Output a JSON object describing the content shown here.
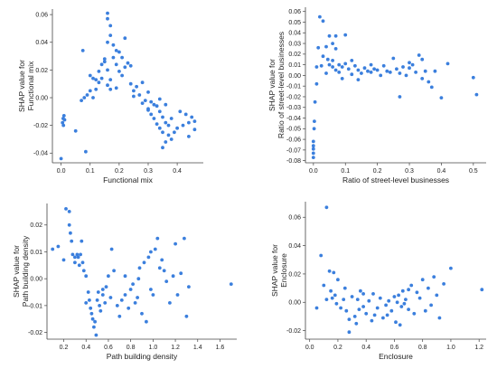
{
  "colors": {
    "point": "#3b7fdd",
    "axis": "#444444",
    "text": "#222222"
  },
  "chart_data": [
    {
      "type": "scatter",
      "xlabel": "Functional mix",
      "ylabel": [
        "SHAP value for",
        "Functional mix"
      ],
      "xlim": [
        -0.03,
        0.49
      ],
      "ylim": [
        -0.047,
        0.064
      ],
      "xticks": [
        0.0,
        0.1,
        0.2,
        0.3,
        0.4
      ],
      "xtick_labels": [
        "0.0",
        "0.1",
        "0.2",
        "0.3",
        "0.4"
      ],
      "yticks": [
        -0.04,
        -0.02,
        0.0,
        0.02,
        0.04,
        0.06
      ],
      "ytick_labels": [
        "-0.04",
        "-0.02",
        "0.00",
        "0.02",
        "0.04",
        "0.06"
      ],
      "points": [
        [
          0.0,
          -0.044
        ],
        [
          0.005,
          -0.018
        ],
        [
          0.007,
          -0.015
        ],
        [
          0.01,
          -0.013
        ],
        [
          0.012,
          -0.016
        ],
        [
          0.008,
          -0.02
        ],
        [
          0.05,
          -0.024
        ],
        [
          0.07,
          -0.002
        ],
        [
          0.08,
          0.0
        ],
        [
          0.09,
          0.002
        ],
        [
          0.085,
          -0.039
        ],
        [
          0.075,
          0.034
        ],
        [
          0.1,
          0.016
        ],
        [
          0.11,
          0.014
        ],
        [
          0.1,
          0.005
        ],
        [
          0.12,
          0.013
        ],
        [
          0.13,
          0.011
        ],
        [
          0.11,
          0.0
        ],
        [
          0.14,
          0.024
        ],
        [
          0.15,
          0.026
        ],
        [
          0.16,
          0.02
        ],
        [
          0.14,
          0.014
        ],
        [
          0.15,
          0.028
        ],
        [
          0.17,
          0.013
        ],
        [
          0.16,
          0.061
        ],
        [
          0.16,
          0.057
        ],
        [
          0.17,
          0.052
        ],
        [
          0.17,
          0.045
        ],
        [
          0.16,
          0.04
        ],
        [
          0.18,
          0.038
        ],
        [
          0.19,
          0.034
        ],
        [
          0.2,
          0.033
        ],
        [
          0.21,
          0.029
        ],
        [
          0.22,
          0.043
        ],
        [
          0.18,
          0.029
        ],
        [
          0.19,
          0.024
        ],
        [
          0.2,
          0.019
        ],
        [
          0.22,
          0.022
        ],
        [
          0.23,
          0.025
        ],
        [
          0.24,
          0.023
        ],
        [
          0.21,
          0.016
        ],
        [
          0.17,
          0.006
        ],
        [
          0.16,
          0.009
        ],
        [
          0.19,
          0.007
        ],
        [
          0.25,
          0.005
        ],
        [
          0.26,
          0.008
        ],
        [
          0.28,
          0.011
        ],
        [
          0.3,
          0.004
        ],
        [
          0.27,
          0.002
        ],
        [
          0.29,
          -0.002
        ],
        [
          0.31,
          -0.003
        ],
        [
          0.32,
          -0.005
        ],
        [
          0.3,
          -0.008
        ],
        [
          0.31,
          -0.012
        ],
        [
          0.33,
          -0.006
        ],
        [
          0.34,
          -0.01
        ],
        [
          0.35,
          -0.014
        ],
        [
          0.33,
          -0.019
        ],
        [
          0.34,
          -0.022
        ],
        [
          0.35,
          -0.025
        ],
        [
          0.36,
          -0.018
        ],
        [
          0.37,
          -0.027
        ],
        [
          0.38,
          -0.03
        ],
        [
          0.35,
          -0.036
        ],
        [
          0.36,
          -0.032
        ],
        [
          0.37,
          -0.02
        ],
        [
          0.38,
          -0.015
        ],
        [
          0.39,
          -0.025
        ],
        [
          0.4,
          -0.022
        ],
        [
          0.42,
          -0.02
        ],
        [
          0.43,
          -0.012
        ],
        [
          0.44,
          -0.018
        ],
        [
          0.45,
          -0.014
        ],
        [
          0.46,
          -0.023
        ],
        [
          0.44,
          -0.028
        ],
        [
          0.41,
          -0.01
        ],
        [
          0.36,
          -0.005
        ],
        [
          0.34,
          -0.001
        ],
        [
          0.32,
          -0.015
        ],
        [
          0.3,
          -0.009
        ],
        [
          0.28,
          -0.004
        ],
        [
          0.25,
          0.001
        ],
        [
          0.24,
          0.01
        ],
        [
          0.13,
          0.019
        ],
        [
          0.12,
          0.006
        ],
        [
          0.46,
          -0.017
        ]
      ]
    },
    {
      "type": "scatter",
      "xlabel": "Ratio of street-level businesses",
      "ylabel": [
        "SHAP value for",
        "Ratio of street-level businesses"
      ],
      "xlim": [
        -0.025,
        0.54
      ],
      "ylim": [
        -0.082,
        0.064
      ],
      "xticks": [
        0.0,
        0.1,
        0.2,
        0.3,
        0.4,
        0.5
      ],
      "xtick_labels": [
        "0.0",
        "0.1",
        "0.2",
        "0.3",
        "0.4",
        "0.5"
      ],
      "yticks": [
        -0.08,
        -0.07,
        -0.06,
        -0.05,
        -0.04,
        -0.03,
        -0.02,
        -0.01,
        0.0,
        0.01,
        0.02,
        0.03,
        0.04,
        0.05,
        0.06
      ],
      "ytick_labels": [
        "-0.08",
        "-0.07",
        "-0.06",
        "-0.05",
        "-0.04",
        "-0.03",
        "-0.02",
        "-0.01",
        "0.00",
        "0.01",
        "0.02",
        "0.03",
        "0.04",
        "0.05",
        "0.06"
      ],
      "points": [
        [
          0.0,
          -0.077
        ],
        [
          0.0,
          -0.073
        ],
        [
          0.0,
          -0.069
        ],
        [
          0.0,
          -0.066
        ],
        [
          0.0,
          -0.062
        ],
        [
          0.002,
          -0.05
        ],
        [
          0.003,
          -0.043
        ],
        [
          0.005,
          -0.025
        ],
        [
          0.01,
          -0.008
        ],
        [
          0.01,
          0.008
        ],
        [
          0.015,
          0.026
        ],
        [
          0.02,
          0.055
        ],
        [
          0.03,
          0.051
        ],
        [
          0.03,
          0.018
        ],
        [
          0.025,
          0.009
        ],
        [
          0.04,
          0.027
        ],
        [
          0.045,
          0.015
        ],
        [
          0.05,
          0.01
        ],
        [
          0.05,
          0.037
        ],
        [
          0.06,
          0.03
        ],
        [
          0.07,
          0.037
        ],
        [
          0.06,
          0.014
        ],
        [
          0.07,
          0.005
        ],
        [
          0.08,
          0.003
        ],
        [
          0.09,
          0.008
        ],
        [
          0.1,
          0.011
        ],
        [
          0.09,
          -0.003
        ],
        [
          0.1,
          0.038
        ],
        [
          0.11,
          0.006
        ],
        [
          0.12,
          0.014
        ],
        [
          0.13,
          0.009
        ],
        [
          0.14,
          0.005
        ],
        [
          0.15,
          0.002
        ],
        [
          0.16,
          0.007
        ],
        [
          0.17,
          0.004
        ],
        [
          0.18,
          0.003
        ],
        [
          0.19,
          0.006
        ],
        [
          0.2,
          0.005
        ],
        [
          0.21,
          0.0
        ],
        [
          0.22,
          0.009
        ],
        [
          0.23,
          0.004
        ],
        [
          0.24,
          0.003
        ],
        [
          0.25,
          0.016
        ],
        [
          0.26,
          0.006
        ],
        [
          0.27,
          0.002
        ],
        [
          0.28,
          0.008
        ],
        [
          0.29,
          0.0
        ],
        [
          0.3,
          0.007
        ],
        [
          0.31,
          0.01
        ],
        [
          0.32,
          0.003
        ],
        [
          0.33,
          0.019
        ],
        [
          0.34,
          0.015
        ],
        [
          0.35,
          0.004
        ],
        [
          0.36,
          -0.006
        ],
        [
          0.37,
          -0.011
        ],
        [
          0.38,
          0.004
        ],
        [
          0.4,
          -0.021
        ],
        [
          0.42,
          0.011
        ],
        [
          0.5,
          -0.002
        ],
        [
          0.51,
          -0.018
        ],
        [
          0.04,
          0.002
        ],
        [
          0.06,
          0.008
        ],
        [
          0.08,
          0.01
        ],
        [
          0.12,
          0.001
        ],
        [
          0.14,
          -0.004
        ],
        [
          0.18,
          0.01
        ],
        [
          0.27,
          -0.02
        ],
        [
          0.3,
          0.012
        ],
        [
          0.34,
          -0.003
        ],
        [
          0.07,
          0.025
        ]
      ]
    },
    {
      "type": "scatter",
      "xlabel": "Path building density",
      "ylabel": [
        "SHAP value for",
        "Path building density"
      ],
      "xlim": [
        0.05,
        1.75
      ],
      "ylim": [
        -0.0225,
        0.028
      ],
      "xticks": [
        0.2,
        0.4,
        0.6,
        0.8,
        1.0,
        1.2,
        1.4,
        1.6
      ],
      "xtick_labels": [
        "0.2",
        "0.4",
        "0.6",
        "0.8",
        "1.0",
        "1.2",
        "1.4",
        "1.6"
      ],
      "yticks": [
        -0.02,
        -0.01,
        0.0,
        0.01,
        0.02
      ],
      "ytick_labels": [
        "-0.02",
        "-0.01",
        "0.00",
        "0.01",
        "0.02"
      ],
      "points": [
        [
          0.1,
          0.011
        ],
        [
          0.15,
          0.012
        ],
        [
          0.2,
          0.007
        ],
        [
          0.22,
          0.026
        ],
        [
          0.25,
          0.025
        ],
        [
          0.25,
          0.02
        ],
        [
          0.26,
          0.017
        ],
        [
          0.27,
          0.014
        ],
        [
          0.28,
          0.009
        ],
        [
          0.3,
          0.006
        ],
        [
          0.3,
          0.008
        ],
        [
          0.32,
          0.009
        ],
        [
          0.33,
          0.008
        ],
        [
          0.34,
          0.005
        ],
        [
          0.35,
          0.009
        ],
        [
          0.36,
          0.014
        ],
        [
          0.37,
          0.006
        ],
        [
          0.38,
          0.003
        ],
        [
          0.4,
          0.001
        ],
        [
          0.42,
          -0.005
        ],
        [
          0.43,
          -0.008
        ],
        [
          0.44,
          -0.011
        ],
        [
          0.45,
          -0.013
        ],
        [
          0.46,
          -0.015
        ],
        [
          0.47,
          -0.018
        ],
        [
          0.48,
          -0.016
        ],
        [
          0.49,
          -0.021
        ],
        [
          0.5,
          -0.008
        ],
        [
          0.51,
          -0.005
        ],
        [
          0.52,
          -0.01
        ],
        [
          0.53,
          -0.012
        ],
        [
          0.55,
          -0.006
        ],
        [
          0.57,
          -0.009
        ],
        [
          0.58,
          -0.003
        ],
        [
          0.6,
          0.001
        ],
        [
          0.62,
          -0.007
        ],
        [
          0.63,
          0.011
        ],
        [
          0.65,
          0.003
        ],
        [
          0.68,
          -0.01
        ],
        [
          0.7,
          -0.014
        ],
        [
          0.72,
          -0.008
        ],
        [
          0.75,
          -0.006
        ],
        [
          0.78,
          -0.011
        ],
        [
          0.8,
          -0.004
        ],
        [
          0.82,
          -0.002
        ],
        [
          0.84,
          -0.009
        ],
        [
          0.86,
          -0.007
        ],
        [
          0.88,
          0.004
        ],
        [
          0.9,
          -0.013
        ],
        [
          0.92,
          0.006
        ],
        [
          0.94,
          -0.016
        ],
        [
          0.96,
          0.008
        ],
        [
          0.98,
          -0.004
        ],
        [
          1.0,
          -0.006
        ],
        [
          1.02,
          0.011
        ],
        [
          1.04,
          0.015
        ],
        [
          1.06,
          0.004
        ],
        [
          1.08,
          0.007
        ],
        [
          1.1,
          0.003
        ],
        [
          1.12,
          -0.001
        ],
        [
          1.15,
          -0.009
        ],
        [
          1.18,
          0.001
        ],
        [
          1.2,
          0.013
        ],
        [
          1.22,
          -0.006
        ],
        [
          1.25,
          0.002
        ],
        [
          1.28,
          0.015
        ],
        [
          1.3,
          -0.014
        ],
        [
          1.32,
          -0.003
        ],
        [
          1.7,
          -0.002
        ],
        [
          0.4,
          -0.009
        ],
        [
          0.55,
          -0.004
        ],
        [
          0.75,
          0.001
        ],
        [
          0.87,
          0.0
        ],
        [
          0.98,
          0.01
        ]
      ]
    },
    {
      "type": "scatter",
      "xlabel": "Enclosure",
      "ylabel": [
        "SHAP value for",
        "Enclosure"
      ],
      "xlim": [
        -0.03,
        1.25
      ],
      "ylim": [
        -0.026,
        0.071
      ],
      "xticks": [
        0.0,
        0.2,
        0.4,
        0.6,
        0.8,
        1.0,
        1.2
      ],
      "xtick_labels": [
        "0.0",
        "0.2",
        "0.4",
        "0.6",
        "0.8",
        "1.0",
        "1.2"
      ],
      "yticks": [
        -0.02,
        0.0,
        0.02,
        0.04,
        0.06
      ],
      "ytick_labels": [
        "-0.02",
        "0.00",
        "0.02",
        "0.04",
        "0.06"
      ],
      "points": [
        [
          0.05,
          -0.004
        ],
        [
          0.08,
          0.033
        ],
        [
          0.1,
          0.012
        ],
        [
          0.12,
          0.067
        ],
        [
          0.14,
          0.022
        ],
        [
          0.15,
          0.008
        ],
        [
          0.16,
          0.003
        ],
        [
          0.17,
          0.021
        ],
        [
          0.18,
          0.005
        ],
        [
          0.19,
          -0.001
        ],
        [
          0.2,
          0.016
        ],
        [
          0.22,
          -0.004
        ],
        [
          0.24,
          0.002
        ],
        [
          0.26,
          -0.006
        ],
        [
          0.28,
          -0.021
        ],
        [
          0.3,
          0.004
        ],
        [
          0.32,
          -0.01
        ],
        [
          0.33,
          -0.015
        ],
        [
          0.34,
          0.002
        ],
        [
          0.35,
          -0.005
        ],
        [
          0.36,
          0.008
        ],
        [
          0.38,
          -0.003
        ],
        [
          0.4,
          -0.008
        ],
        [
          0.42,
          0.001
        ],
        [
          0.44,
          -0.013
        ],
        [
          0.45,
          0.006
        ],
        [
          0.46,
          -0.009
        ],
        [
          0.48,
          -0.004
        ],
        [
          0.5,
          0.003
        ],
        [
          0.52,
          -0.011
        ],
        [
          0.54,
          -0.002
        ],
        [
          0.56,
          0.001
        ],
        [
          0.58,
          -0.006
        ],
        [
          0.6,
          0.004
        ],
        [
          0.61,
          -0.014
        ],
        [
          0.62,
          0.0
        ],
        [
          0.63,
          0.005
        ],
        [
          0.64,
          -0.016
        ],
        [
          0.65,
          -0.003
        ],
        [
          0.66,
          0.008
        ],
        [
          0.68,
          0.002
        ],
        [
          0.7,
          -0.005
        ],
        [
          0.72,
          0.012
        ],
        [
          0.74,
          -0.008
        ],
        [
          0.76,
          0.007
        ],
        [
          0.78,
          0.003
        ],
        [
          0.8,
          0.016
        ],
        [
          0.82,
          -0.006
        ],
        [
          0.84,
          0.01
        ],
        [
          0.86,
          -0.002
        ],
        [
          0.88,
          0.018
        ],
        [
          0.9,
          0.005
        ],
        [
          0.92,
          -0.011
        ],
        [
          0.95,
          0.013
        ],
        [
          1.0,
          0.024
        ],
        [
          1.22,
          0.009
        ],
        [
          0.25,
          0.01
        ],
        [
          0.38,
          0.006
        ],
        [
          0.55,
          -0.009
        ],
        [
          0.67,
          -0.001
        ],
        [
          0.7,
          0.009
        ],
        [
          0.28,
          -0.012
        ],
        [
          0.12,
          0.002
        ]
      ]
    }
  ]
}
